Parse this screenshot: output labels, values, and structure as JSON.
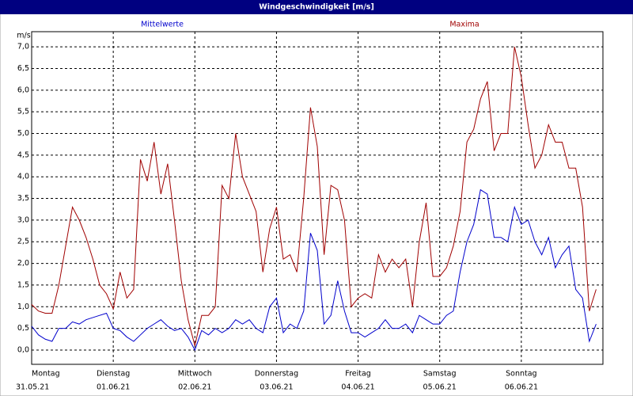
{
  "chart_data": {
    "type": "line",
    "title": "Windgeschwindigkeit [m/s]",
    "y_label": "m/s",
    "x": [
      0,
      2,
      4,
      6,
      8,
      10,
      12,
      14,
      16,
      18,
      20,
      22,
      24,
      26,
      28,
      30,
      32,
      34,
      36,
      38,
      40,
      42,
      44,
      46,
      48,
      50,
      52,
      54,
      56,
      58,
      60,
      62,
      64,
      66,
      68,
      70,
      72,
      74,
      76,
      78,
      80,
      82,
      84,
      86,
      88,
      90,
      92,
      94,
      96,
      98,
      100,
      102,
      104,
      106,
      108,
      110,
      112,
      114,
      116,
      118,
      120,
      122,
      124,
      126,
      128,
      130,
      132,
      134,
      136,
      138,
      140,
      142,
      144,
      146,
      148,
      150,
      152,
      154,
      156,
      158,
      160,
      162,
      164,
      166
    ],
    "xlim": [
      0,
      168
    ],
    "xticks": [
      {
        "value": 0,
        "label": "Montag"
      },
      {
        "value": 24,
        "label": "Dienstag"
      },
      {
        "value": 48,
        "label": "Mittwoch"
      },
      {
        "value": 72,
        "label": "Donnerstag"
      },
      {
        "value": 96,
        "label": "Freitag"
      },
      {
        "value": 120,
        "label": "Samstag"
      },
      {
        "value": 144,
        "label": "Sonntag"
      }
    ],
    "xtick_dates": [
      "31.05.21",
      "01.06.21",
      "02.06.21",
      "03.06.21",
      "04.06.21",
      "05.06.21",
      "06.06.21"
    ],
    "ylim": [
      -0.33,
      7.35
    ],
    "yticks": [
      {
        "value": 0,
        "label": "0,0"
      },
      {
        "value": 0.5,
        "label": "0,5"
      },
      {
        "value": 1,
        "label": "1,0"
      },
      {
        "value": 1.5,
        "label": "1,5"
      },
      {
        "value": 2,
        "label": "2,0"
      },
      {
        "value": 2.5,
        "label": "2,5"
      },
      {
        "value": 3,
        "label": "3,0"
      },
      {
        "value": 3.5,
        "label": "3,5"
      },
      {
        "value": 4,
        "label": "4,0"
      },
      {
        "value": 4.5,
        "label": "4,5"
      },
      {
        "value": 5,
        "label": "5,0"
      },
      {
        "value": 5.5,
        "label": "5,5"
      },
      {
        "value": 6,
        "label": "6,0"
      },
      {
        "value": 6.5,
        "label": "6,5"
      },
      {
        "value": 7,
        "label": "7,0"
      }
    ],
    "grid": true,
    "series": [
      {
        "name": "Mittelwerte",
        "color": "#0000cc",
        "values": [
          0.55,
          0.35,
          0.25,
          0.2,
          0.5,
          0.5,
          0.65,
          0.6,
          0.7,
          0.75,
          0.8,
          0.85,
          0.5,
          0.45,
          0.3,
          0.2,
          0.35,
          0.5,
          0.6,
          0.7,
          0.55,
          0.45,
          0.5,
          0.3,
          0.0,
          0.45,
          0.35,
          0.5,
          0.4,
          0.5,
          0.7,
          0.6,
          0.7,
          0.5,
          0.4,
          1.0,
          1.2,
          0.4,
          0.6,
          0.5,
          0.9,
          2.7,
          2.3,
          0.6,
          0.8,
          1.6,
          0.9,
          0.4,
          0.4,
          0.3,
          0.4,
          0.5,
          0.7,
          0.5,
          0.5,
          0.6,
          0.4,
          0.8,
          0.7,
          0.6,
          0.6,
          0.8,
          0.9,
          1.8,
          2.5,
          2.9,
          3.7,
          3.6,
          2.6,
          2.6,
          2.5,
          3.3,
          2.9,
          3.0,
          2.5,
          2.2,
          2.6,
          1.9,
          2.2,
          2.4,
          1.4,
          1.2,
          0.2,
          0.6
        ]
      },
      {
        "name": "Maxima",
        "color": "#a00000",
        "values": [
          1.05,
          0.9,
          0.85,
          0.85,
          1.5,
          2.4,
          3.3,
          3.0,
          2.6,
          2.1,
          1.5,
          1.3,
          0.95,
          1.8,
          1.2,
          1.4,
          4.4,
          3.9,
          4.8,
          3.6,
          4.3,
          3.0,
          1.6,
          0.7,
          0.1,
          0.8,
          0.8,
          1.0,
          3.8,
          3.5,
          5.0,
          4.0,
          3.6,
          3.2,
          1.8,
          2.8,
          3.3,
          2.1,
          2.2,
          1.8,
          3.5,
          5.6,
          4.7,
          2.2,
          3.8,
          3.7,
          3.0,
          1.0,
          1.2,
          1.3,
          1.2,
          2.2,
          1.8,
          2.1,
          1.9,
          2.1,
          1.0,
          2.5,
          3.4,
          1.7,
          1.7,
          1.9,
          2.4,
          3.2,
          4.8,
          5.1,
          5.8,
          6.2,
          4.6,
          5.0,
          5.0,
          7.0,
          6.3,
          5.2,
          4.2,
          4.5,
          5.2,
          4.8,
          4.8,
          4.2,
          4.2,
          3.3,
          0.9,
          1.4
        ]
      }
    ]
  }
}
